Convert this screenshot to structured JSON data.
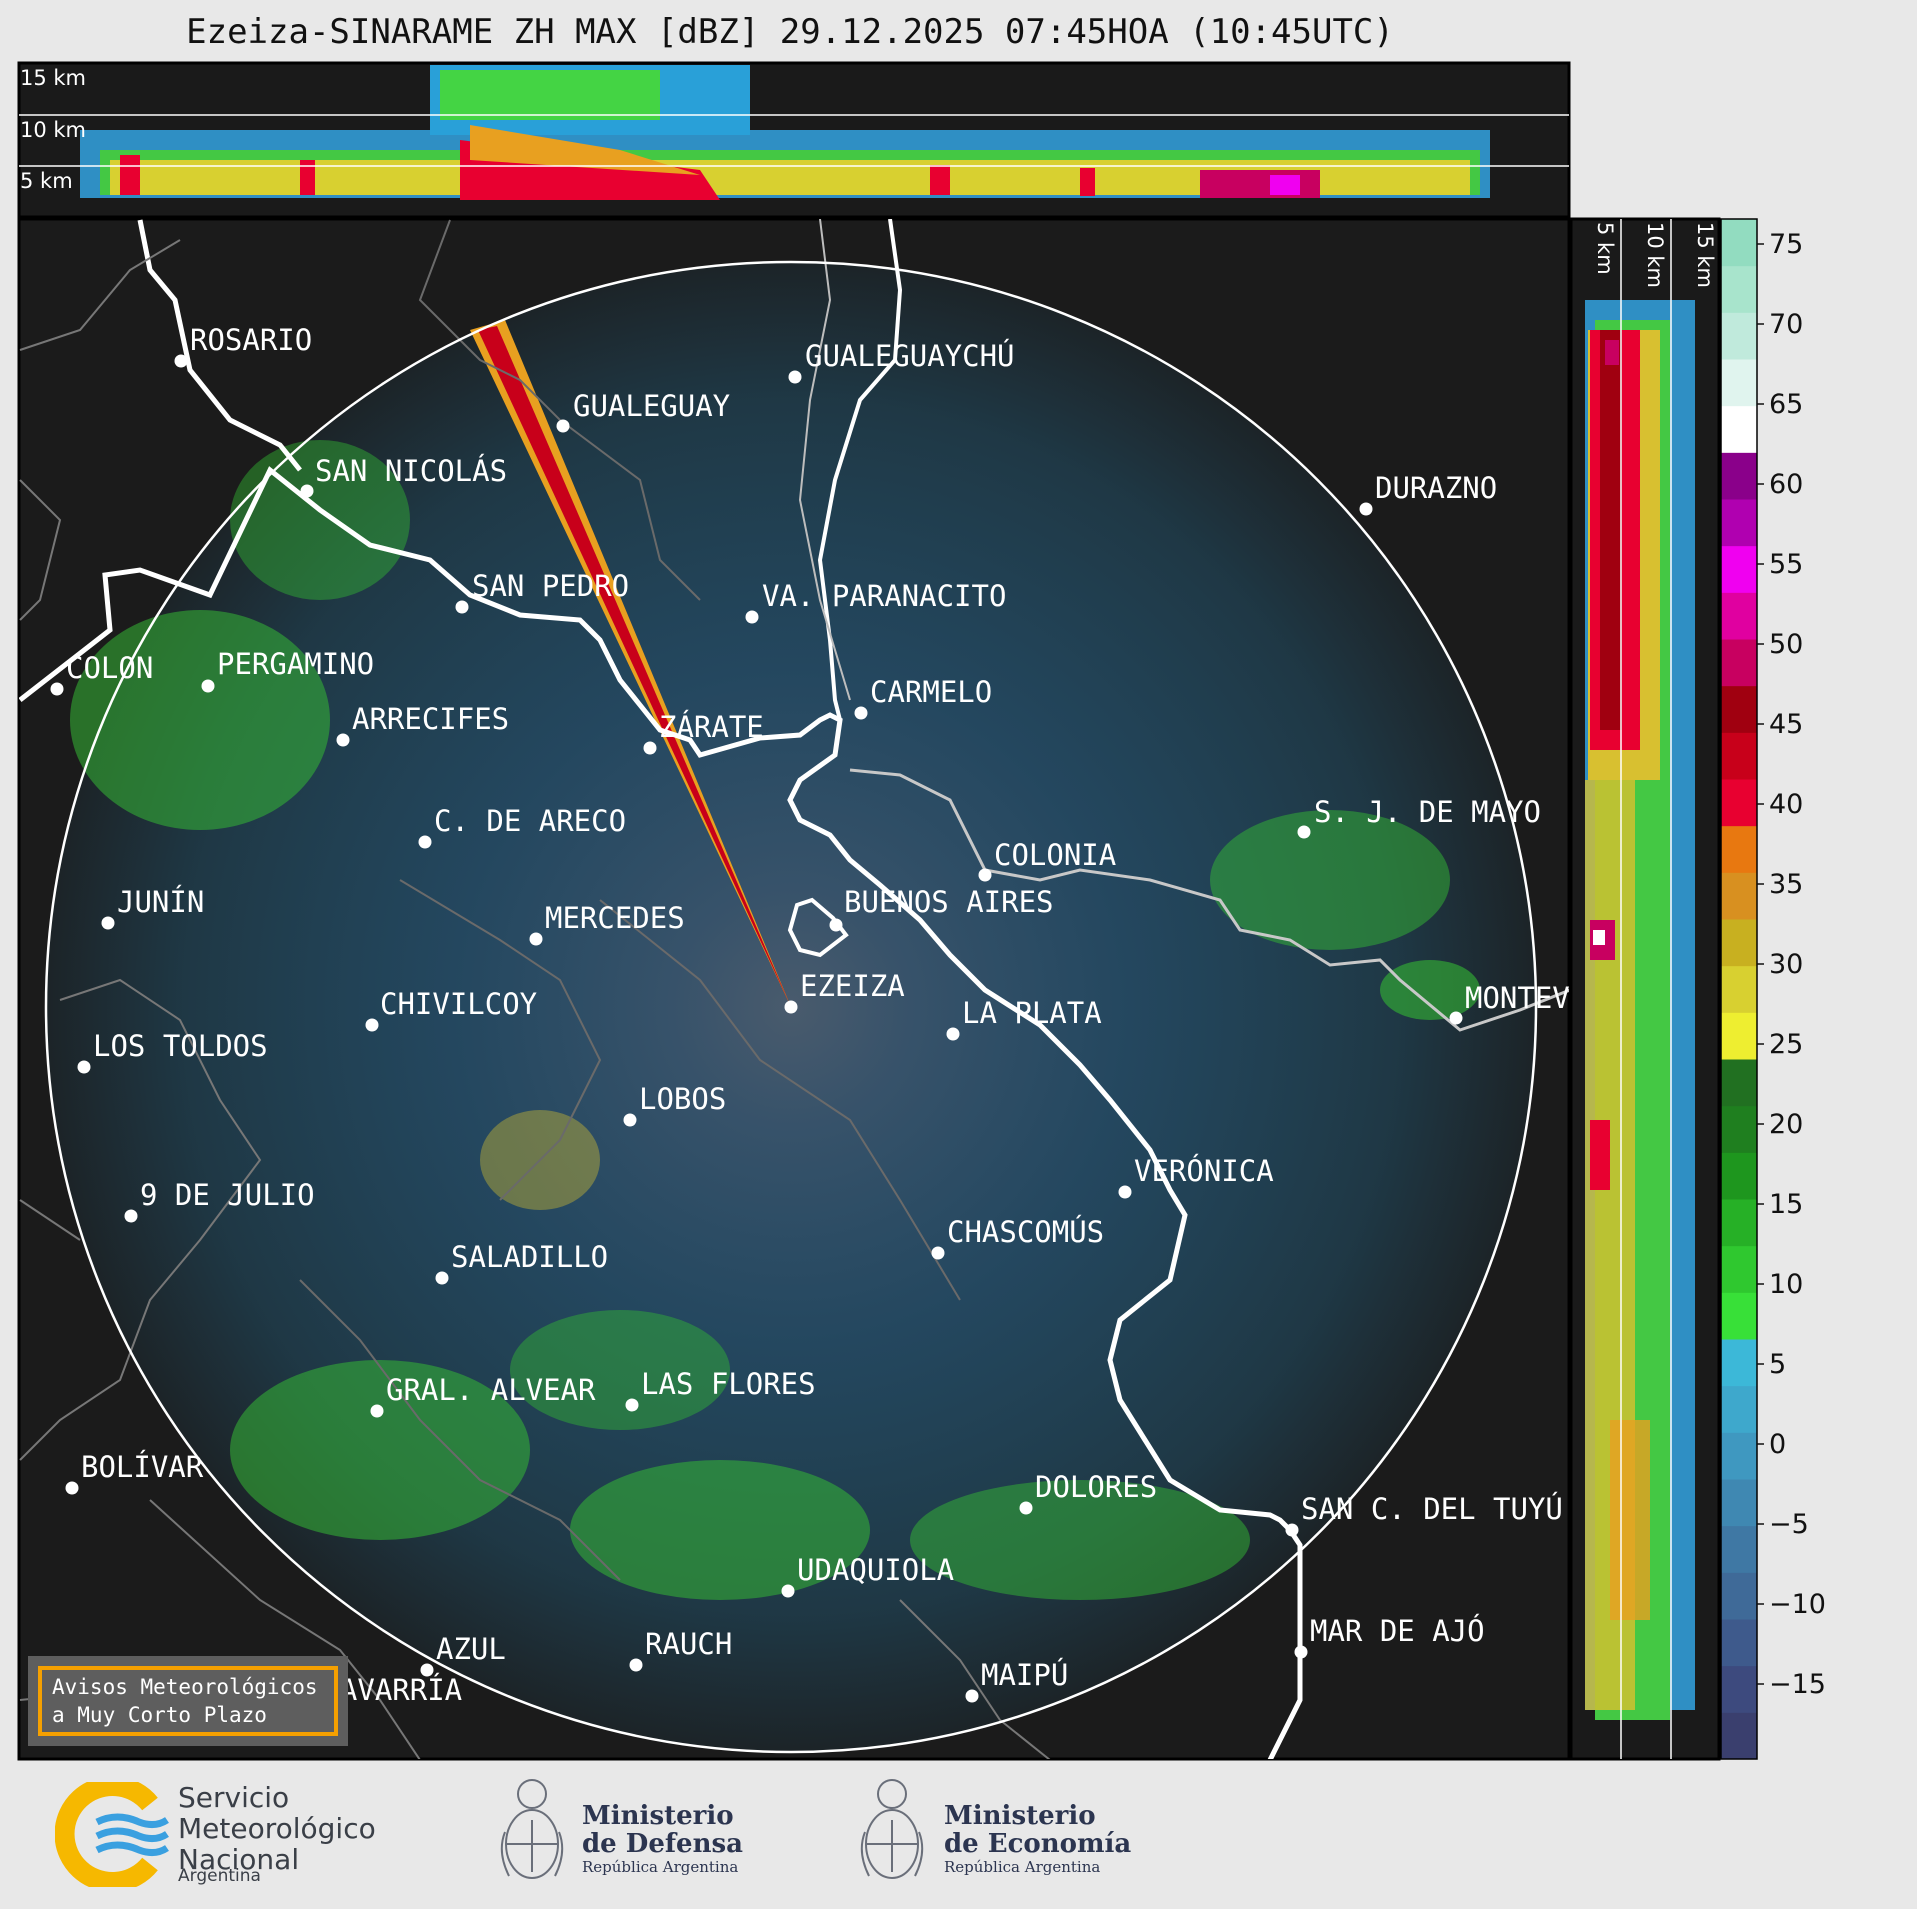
{
  "title": "Ezeiza-SINARAME ZH MAX [dBZ] 29.12.2025 07:45HOA (10:45UTC)",
  "height_labels_top": [
    "15 km",
    "10 km",
    "5 km"
  ],
  "height_labels_side": [
    "5 km",
    "10 km",
    "15 km"
  ],
  "colorbar": {
    "ticks": [
      "75",
      "70",
      "65",
      "60",
      "55",
      "50",
      "45",
      "40",
      "35",
      "30",
      "25",
      "20",
      "15",
      "10",
      "5",
      "0",
      "−5",
      "−10",
      "−15"
    ],
    "colors": [
      "#3a3f6e",
      "#3d4a7e",
      "#3e5a8c",
      "#3f6a98",
      "#3f78a4",
      "#3f88b2",
      "#3f98c0",
      "#3ea8cc",
      "#3cb8d8",
      "#38e038",
      "#2fc82f",
      "#26b026",
      "#1e961e",
      "#1f7f1f",
      "#217021",
      "#eeee30",
      "#d8d030",
      "#c8b020",
      "#d89020",
      "#e87810",
      "#e80030",
      "#c8001a",
      "#a00010",
      "#c80060",
      "#e000a0",
      "#f000f0",
      "#b000b0",
      "#8a008a",
      "#ffffff",
      "#e0f4ee",
      "#c0eadc",
      "#a8e4cc",
      "#92dcc0"
    ]
  },
  "cities": [
    {
      "name": "ROSARIO"
    },
    {
      "name": "GUALEGUAYCHÚ"
    },
    {
      "name": "GUALEGUAY"
    },
    {
      "name": "SAN NICOLÁS"
    },
    {
      "name": "DURAZNO"
    },
    {
      "name": "SAN PEDRO"
    },
    {
      "name": "VA. PARANACITO"
    },
    {
      "name": "COLON"
    },
    {
      "name": "PERGAMINO"
    },
    {
      "name": "CARMELO"
    },
    {
      "name": "ARRECIFES"
    },
    {
      "name": "ZÁRATE"
    },
    {
      "name": "S. J. DE MAYO"
    },
    {
      "name": "C. DE ARECO"
    },
    {
      "name": "COLONIA"
    },
    {
      "name": "JUNÍN"
    },
    {
      "name": "BUENOS AIRES"
    },
    {
      "name": "MERCEDES"
    },
    {
      "name": "MONTEVIDEO"
    },
    {
      "name": "EZEIZA"
    },
    {
      "name": "CHIVILCOY"
    },
    {
      "name": "LA PLATA"
    },
    {
      "name": "LOS TOLDOS"
    },
    {
      "name": "LOBOS"
    },
    {
      "name": "VERÓNICA"
    },
    {
      "name": "9 DE JULIO"
    },
    {
      "name": "CHASCOMÚS"
    },
    {
      "name": "SALADILLO"
    },
    {
      "name": "GRAL. ALVEAR"
    },
    {
      "name": "LAS FLORES"
    },
    {
      "name": "BOLÍVAR"
    },
    {
      "name": "DOLORES"
    },
    {
      "name": "SAN C. DEL TUYÚ"
    },
    {
      "name": "UDAQUIOLA"
    },
    {
      "name": "RAUCH"
    },
    {
      "name": "AZUL"
    },
    {
      "name": "MAR DE AJÓ"
    },
    {
      "name": "OLAVARRÍA"
    },
    {
      "name": "MAIPÚ"
    }
  ],
  "aviso": {
    "line1": "Avisos Meteorológicos",
    "line2": "a Muy Corto Plazo"
  },
  "logos": {
    "smn": {
      "line1": "Servicio",
      "line2": "Meteorológico",
      "line3": "Nacional",
      "country": "Argentina"
    },
    "defensa": {
      "line1": "Ministerio",
      "line2": "de Defensa",
      "sub": "República Argentina"
    },
    "economia": {
      "line1": "Ministerio",
      "line2": "de Economía",
      "sub": "República Argentina"
    }
  }
}
